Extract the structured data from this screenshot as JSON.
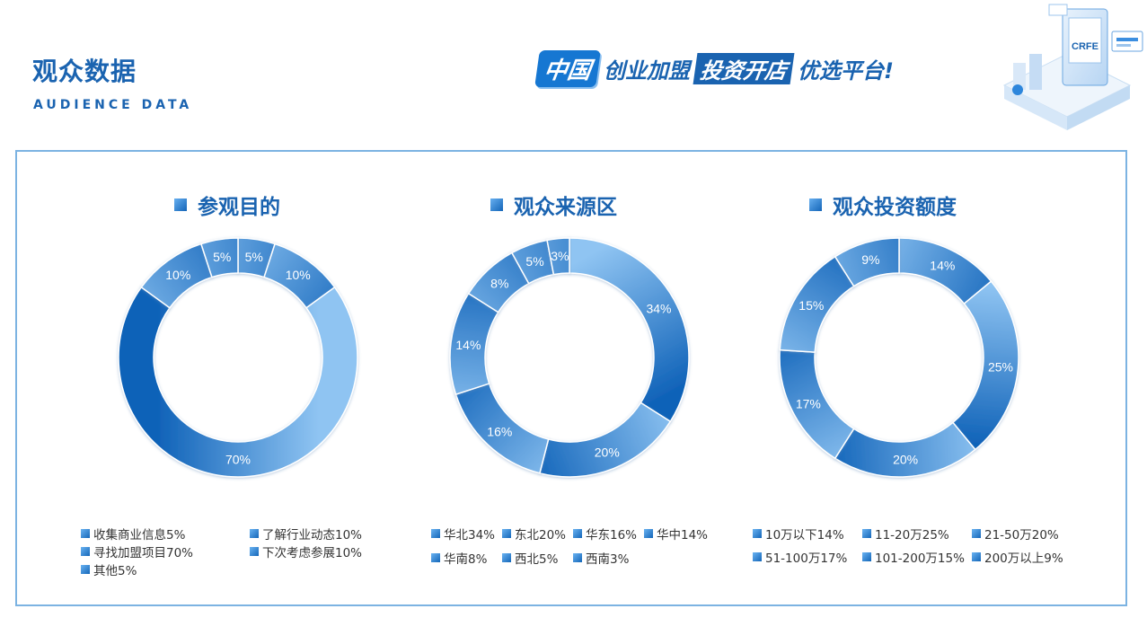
{
  "header": {
    "title": "观众数据",
    "subtitle": "AUDIENCE DATA",
    "slogan": {
      "logo": "中国",
      "part1": "创业加盟",
      "part2": "投资开店",
      "part3": "优选平台!"
    },
    "deco_label": "CRFE"
  },
  "colors": {
    "accent": "#1a63b0",
    "light": "#8fc4f2",
    "dark": "#0f62b8",
    "border": "#7cb3e2"
  },
  "chart_data": [
    {
      "type": "pie",
      "title": "参观目的",
      "categories": [
        "收集商业信息",
        "了解行业动态",
        "寻找加盟项目",
        "下次考虑参展",
        "其他"
      ],
      "values": [
        5,
        10,
        70,
        10,
        5
      ],
      "labels": [
        "5%",
        "10%",
        "70%",
        "10%",
        "5%"
      ],
      "legend": [
        "收集商业信息5%",
        "了解行业动态10%",
        "寻找加盟项目70%",
        "下次考虑参展10%",
        "其他5%"
      ]
    },
    {
      "type": "pie",
      "title": "观众来源区",
      "categories": [
        "华北",
        "东北",
        "华东",
        "华中",
        "华南",
        "西北",
        "西南"
      ],
      "values": [
        34,
        20,
        16,
        14,
        8,
        5,
        3
      ],
      "labels": [
        "34%",
        "20%",
        "16%",
        "14%",
        "8%",
        "5%",
        "3%"
      ],
      "legend": [
        "华北34%",
        "东北20%",
        "华东16%",
        "华中14%",
        "华南8%",
        "西北5%",
        "西南3%"
      ]
    },
    {
      "type": "pie",
      "title": "观众投资额度",
      "categories": [
        "10万以下",
        "11-20万",
        "21-50万",
        "51-100万",
        "101-200万",
        "200万以上"
      ],
      "values": [
        14,
        25,
        20,
        17,
        15,
        9
      ],
      "labels": [
        "14%",
        "25%",
        "20%",
        "17%",
        "15%",
        "9%"
      ],
      "legend": [
        "10万以下14%",
        "11-20万25%",
        "21-50万20%",
        "51-100万17%",
        "101-200万15%",
        "200万以上9%"
      ]
    }
  ]
}
